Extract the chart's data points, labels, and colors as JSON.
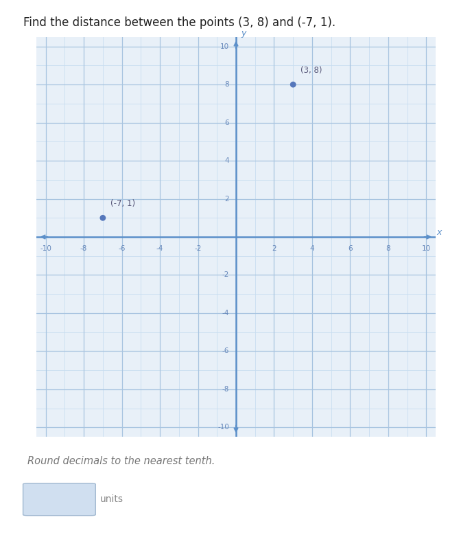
{
  "title": "Find the distance between the points (3, 8) and (-7, 1).",
  "title_fontsize": 12,
  "subtitle": "Round decimals to the nearest tenth.",
  "subtitle_fontsize": 10.5,
  "point1": [
    3,
    8
  ],
  "point2": [
    -7,
    1
  ],
  "point1_label": "(3, 8)",
  "point2_label": "(-7, 1)",
  "xlim": [
    -10.5,
    10.5
  ],
  "ylim": [
    -10.5,
    10.5
  ],
  "axis_color": "#5b8fc9",
  "grid_color": "#a8c4e0",
  "grid_minor_color": "#c8ddf0",
  "point_color": "#5577bb",
  "point_size": 40,
  "tick_step": 2,
  "bg_color": "#e8f0f8",
  "fig_bg_color": "#f0f0f0",
  "panel_bg_color": "#ffffff",
  "answer_box_color": "#d0dff0",
  "answer_box_edge": "#a0b8d0",
  "units_label": "units",
  "x_axis_label": "x",
  "y_axis_label": "y",
  "tick_color": "#6688bb",
  "label_color": "#555577"
}
